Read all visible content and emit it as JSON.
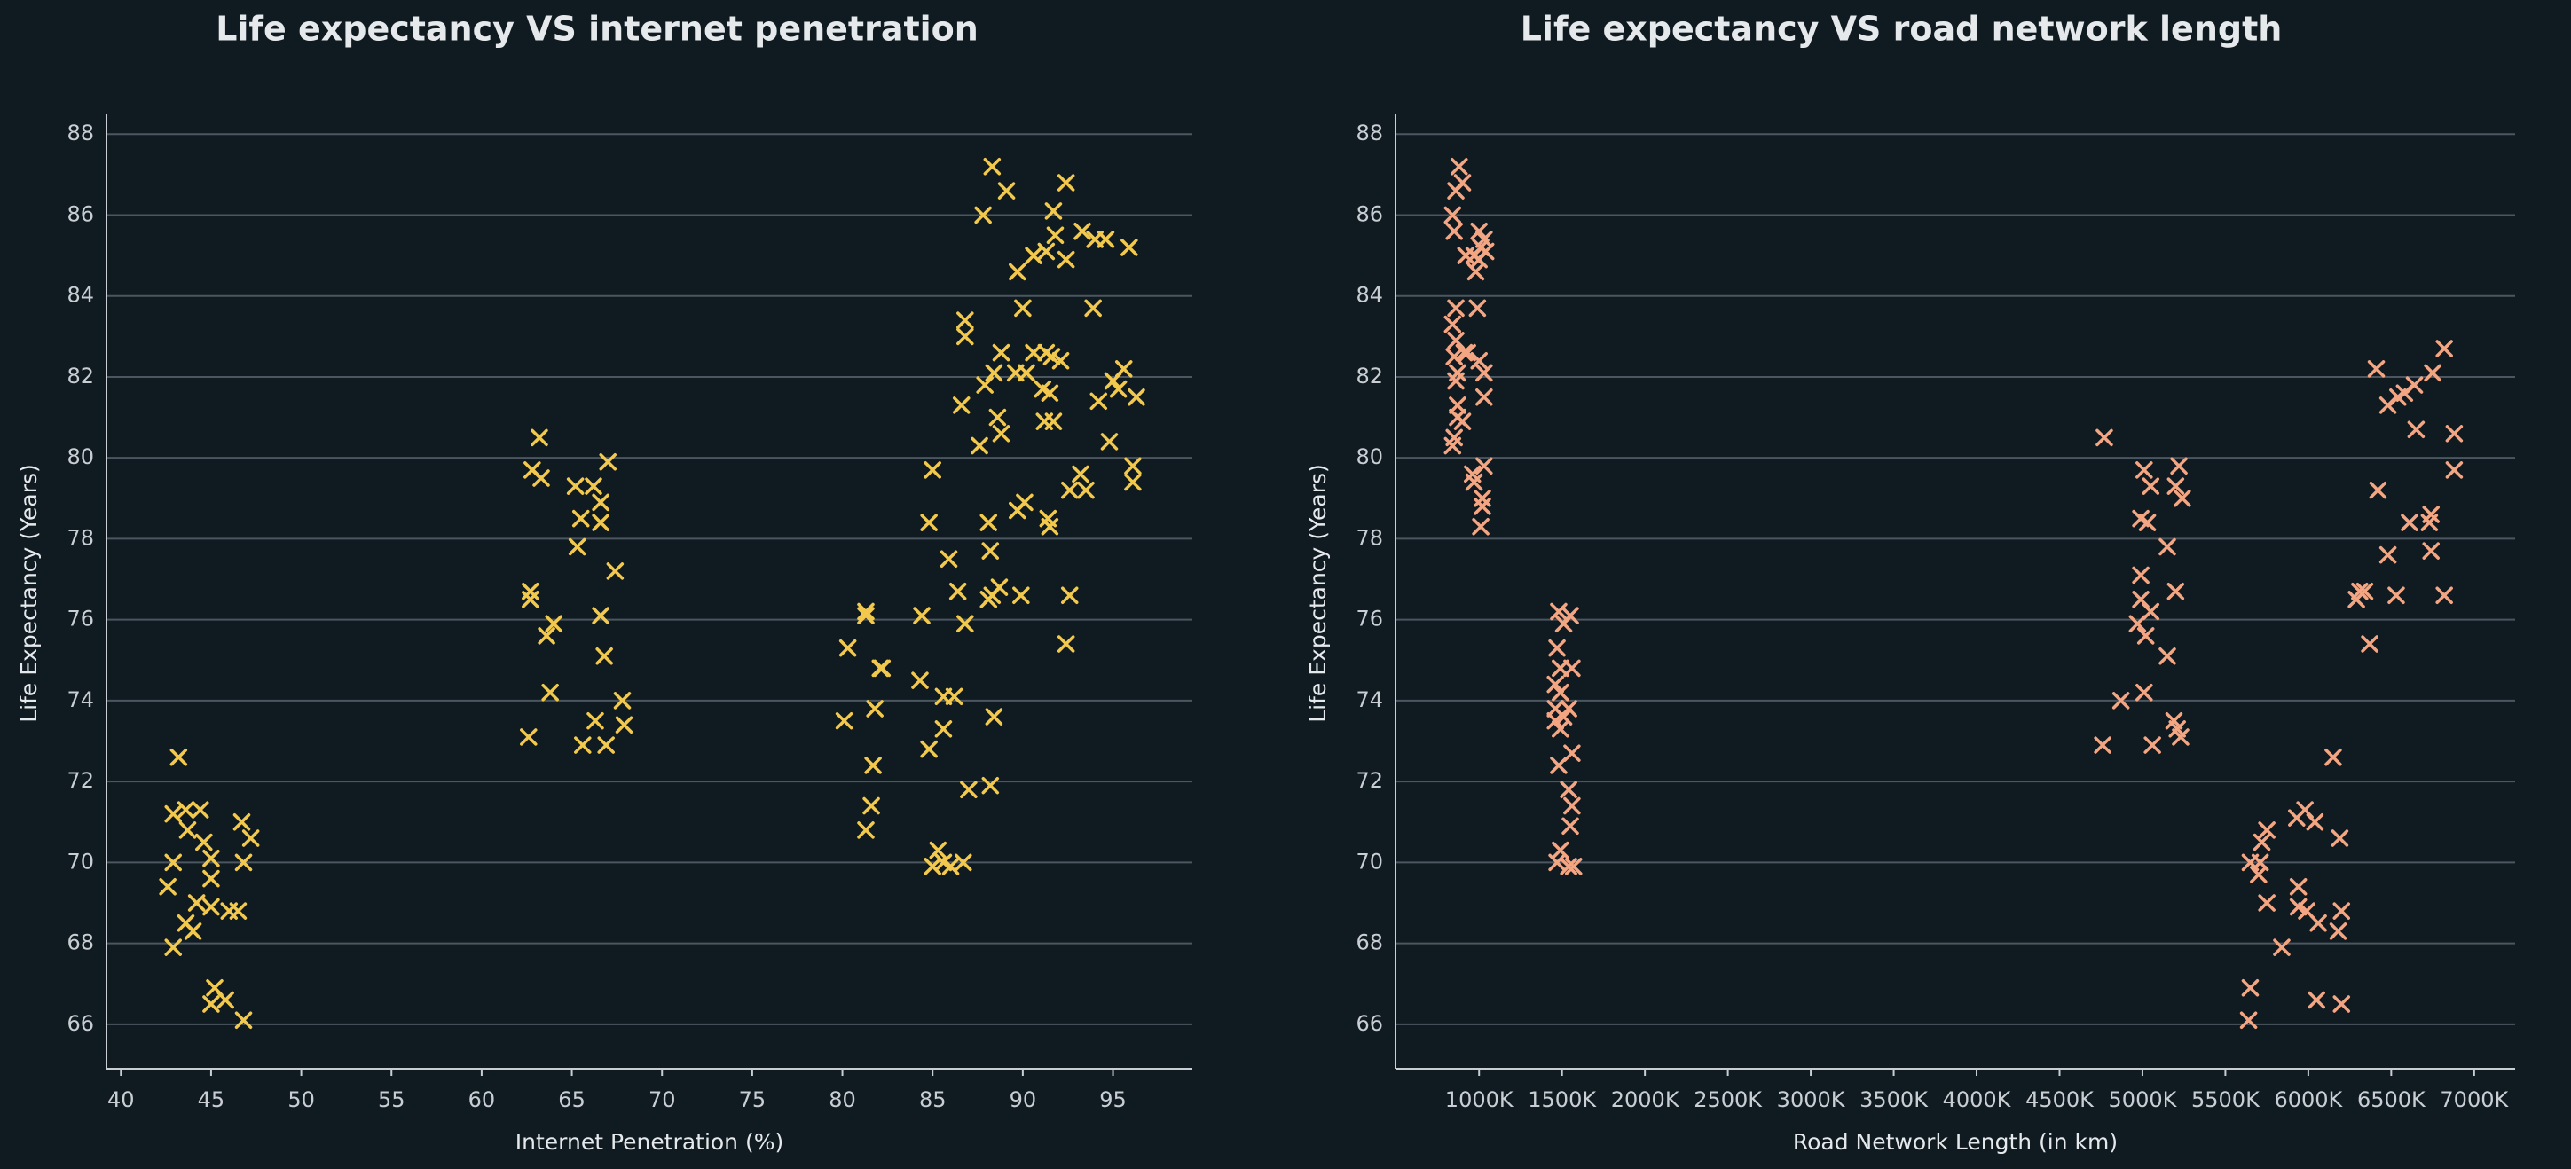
{
  "chart_data": [
    {
      "type": "scatter",
      "title": "Life expectancy VS internet penetration",
      "x_label": "Internet Penetration (%)",
      "y_label": "Life Expectancy (Years)",
      "color": "#f2c94c",
      "grid": true,
      "xlim": [
        39.2,
        99.4
      ],
      "ylim": [
        64.9,
        88.4
      ],
      "xticks": [
        40,
        45,
        50,
        55,
        60,
        65,
        70,
        75,
        80,
        85,
        90,
        95
      ],
      "yticks": [
        66,
        68,
        70,
        72,
        74,
        76,
        78,
        80,
        82,
        84,
        86,
        88
      ],
      "x": [
        43.2,
        42.9,
        43.6,
        44.4,
        43.7,
        44.6,
        45.0,
        42.9,
        42.6,
        45.0,
        44.2,
        45.0,
        43.6,
        44.0,
        46.0,
        46.5,
        42.9,
        45.2,
        45.0,
        45.8,
        46.8,
        46.7,
        47.2,
        46.8,
        63.2,
        62.8,
        63.3,
        67.0,
        65.2,
        66.2,
        66.6,
        65.5,
        66.6,
        63.6,
        65.3,
        67.4,
        62.7,
        62.7,
        64.0,
        66.6,
        66.8,
        63.8,
        67.8,
        67.9,
        66.3,
        62.6,
        65.6,
        66.9,
        88.3,
        92.4,
        89.1,
        87.8,
        91.7,
        91.8,
        93.3,
        94.0,
        94.6,
        95.9,
        91.3,
        90.6,
        92.4,
        89.7,
        93.9,
        90.0,
        86.8,
        86.8,
        88.8,
        90.6,
        91.3,
        91.6,
        92.1,
        95.6,
        88.4,
        89.6,
        90.2,
        87.9,
        95.0,
        95.3,
        91.1,
        91.5,
        96.3,
        94.2,
        86.6,
        88.6,
        91.2,
        91.7,
        88.8,
        87.6,
        94.8,
        96.1,
        96.1,
        85.0,
        93.2,
        92.6,
        93.5,
        90.1,
        89.7,
        91.4,
        91.5,
        84.8,
        88.1,
        88.2,
        85.9,
        86.4,
        89.9,
        92.6,
        88.3,
        81.3,
        81.3,
        84.4,
        88.1,
        88.7,
        86.8,
        92.4,
        80.3,
        82.1,
        82.2,
        84.3,
        85.6,
        86.2,
        81.8,
        88.4,
        80.1,
        85.6,
        84.8,
        81.7,
        87.0,
        88.2,
        81.6,
        81.3,
        85.3,
        85.0,
        86.0,
        86.7,
        85.6
      ],
      "values": [
        72.6,
        71.2,
        71.3,
        71.3,
        70.8,
        70.5,
        70.1,
        70.0,
        69.4,
        69.6,
        69.0,
        68.9,
        68.5,
        68.3,
        68.8,
        68.8,
        67.9,
        66.9,
        66.5,
        66.6,
        66.1,
        71.0,
        70.6,
        70.0,
        80.5,
        79.7,
        79.5,
        79.9,
        79.3,
        79.3,
        78.9,
        78.5,
        78.4,
        75.6,
        77.8,
        77.2,
        76.7,
        76.5,
        75.9,
        76.1,
        75.1,
        74.2,
        74.0,
        73.4,
        73.5,
        73.1,
        72.9,
        72.9,
        87.2,
        86.8,
        86.6,
        86.0,
        86.1,
        85.5,
        85.6,
        85.4,
        85.4,
        85.2,
        85.1,
        85.0,
        84.9,
        84.6,
        83.7,
        83.7,
        83.4,
        83.0,
        82.6,
        82.6,
        82.6,
        82.5,
        82.4,
        82.2,
        82.1,
        82.1,
        82.1,
        81.8,
        81.9,
        81.7,
        81.7,
        81.6,
        81.5,
        81.4,
        81.3,
        81.0,
        80.9,
        80.9,
        80.6,
        80.3,
        80.4,
        79.8,
        79.4,
        79.7,
        79.6,
        79.2,
        79.2,
        78.9,
        78.7,
        78.5,
        78.3,
        78.4,
        78.4,
        77.7,
        77.5,
        76.7,
        76.6,
        76.6,
        76.6,
        76.2,
        76.1,
        76.1,
        76.5,
        76.8,
        75.9,
        75.4,
        75.3,
        74.8,
        74.8,
        74.5,
        74.1,
        74.1,
        73.8,
        73.6,
        73.5,
        73.3,
        72.8,
        72.4,
        71.8,
        71.9,
        71.4,
        70.8,
        70.3,
        69.9,
        69.9,
        70.0,
        70.0
      ]
    },
    {
      "type": "scatter",
      "title": "Life expectancy VS road network length",
      "x_label": "Road Network Length (in km)",
      "y_label": "Life Expectancy (Years)",
      "color": "#f4a582",
      "grid": true,
      "xlim": [
        496000,
        7247000
      ],
      "ylim": [
        64.9,
        88.4
      ],
      "xticks": [
        {
          "value": 1000000,
          "label": "1000K"
        },
        {
          "value": 1500000,
          "label": "1500K"
        },
        {
          "value": 2000000,
          "label": "2000K"
        },
        {
          "value": 2500000,
          "label": "2500K"
        },
        {
          "value": 3000000,
          "label": "3000K"
        },
        {
          "value": 3500000,
          "label": "3500K"
        },
        {
          "value": 4000000,
          "label": "4000K"
        },
        {
          "value": 4500000,
          "label": "4500K"
        },
        {
          "value": 5000000,
          "label": "5000K"
        },
        {
          "value": 5500000,
          "label": "5500K"
        },
        {
          "value": 6000000,
          "label": "6000K"
        },
        {
          "value": 6500000,
          "label": "6500K"
        },
        {
          "value": 7000000,
          "label": "7000K"
        }
      ],
      "yticks": [
        66,
        68,
        70,
        72,
        74,
        76,
        78,
        80,
        82,
        84,
        86,
        88
      ],
      "x": [
        880000,
        900000,
        860000,
        840000,
        850000,
        1000000,
        1030000,
        1010000,
        1040000,
        970000,
        920000,
        1000000,
        980000,
        860000,
        990000,
        840000,
        860000,
        930000,
        850000,
        910000,
        1000000,
        870000,
        1030000,
        860000,
        1030000,
        870000,
        870000,
        900000,
        850000,
        840000,
        1030000,
        960000,
        970000,
        1020000,
        1020000,
        1010000,
        1480000,
        1550000,
        1510000,
        1470000,
        1490000,
        1560000,
        1460000,
        1490000,
        1460000,
        1540000,
        1510000,
        1460000,
        1490000,
        1560000,
        1480000,
        1540000,
        1560000,
        1550000,
        1490000,
        1470000,
        1540000,
        1570000,
        4770000,
        5010000,
        5220000,
        5050000,
        5200000,
        5240000,
        4990000,
        5030000,
        5150000,
        4990000,
        5200000,
        4990000,
        5050000,
        4970000,
        5020000,
        5150000,
        4870000,
        5010000,
        5190000,
        5210000,
        5230000,
        4760000,
        5060000,
        6150000,
        5980000,
        5930000,
        6040000,
        5750000,
        6190000,
        5720000,
        5650000,
        5710000,
        5700000,
        5940000,
        5750000,
        5940000,
        5990000,
        6200000,
        6060000,
        6180000,
        5840000,
        5650000,
        6050000,
        6200000,
        5640000,
        6820000,
        6410000,
        6750000,
        6640000,
        6580000,
        6540000,
        6480000,
        6880000,
        6650000,
        6880000,
        6420000,
        6740000,
        6610000,
        6730000,
        6740000,
        6480000,
        6310000,
        6340000,
        6290000,
        6530000,
        6820000,
        6370000
      ],
      "values": [
        87.2,
        86.8,
        86.6,
        86.0,
        85.6,
        85.6,
        85.4,
        85.2,
        85.1,
        85.0,
        85.0,
        84.9,
        84.6,
        83.7,
        83.7,
        83.3,
        82.9,
        82.6,
        82.5,
        82.6,
        82.4,
        82.1,
        82.1,
        81.9,
        81.5,
        81.3,
        81.0,
        80.9,
        80.5,
        80.3,
        79.8,
        79.6,
        79.4,
        79.0,
        78.8,
        78.3,
        76.2,
        76.1,
        75.9,
        75.3,
        74.8,
        74.8,
        74.4,
        74.2,
        73.8,
        73.8,
        73.6,
        73.5,
        73.3,
        72.7,
        72.4,
        71.8,
        71.4,
        70.9,
        70.3,
        70.0,
        69.9,
        69.9,
        80.5,
        79.7,
        79.8,
        79.3,
        79.3,
        79.0,
        78.5,
        78.4,
        77.8,
        77.1,
        76.7,
        76.5,
        76.2,
        75.9,
        75.6,
        75.1,
        74.0,
        74.2,
        73.5,
        73.3,
        73.1,
        72.9,
        72.9,
        72.6,
        71.3,
        71.1,
        71.0,
        70.8,
        70.6,
        70.5,
        70.0,
        70.0,
        69.7,
        69.4,
        69.0,
        68.9,
        68.8,
        68.8,
        68.5,
        68.3,
        67.9,
        66.9,
        66.6,
        66.5,
        66.1,
        82.7,
        82.2,
        82.1,
        81.8,
        81.6,
        81.5,
        81.3,
        80.6,
        80.7,
        79.7,
        79.2,
        78.6,
        78.4,
        78.4,
        77.7,
        77.6,
        76.7,
        76.7,
        76.5,
        76.6,
        76.6,
        75.4
      ]
    }
  ]
}
